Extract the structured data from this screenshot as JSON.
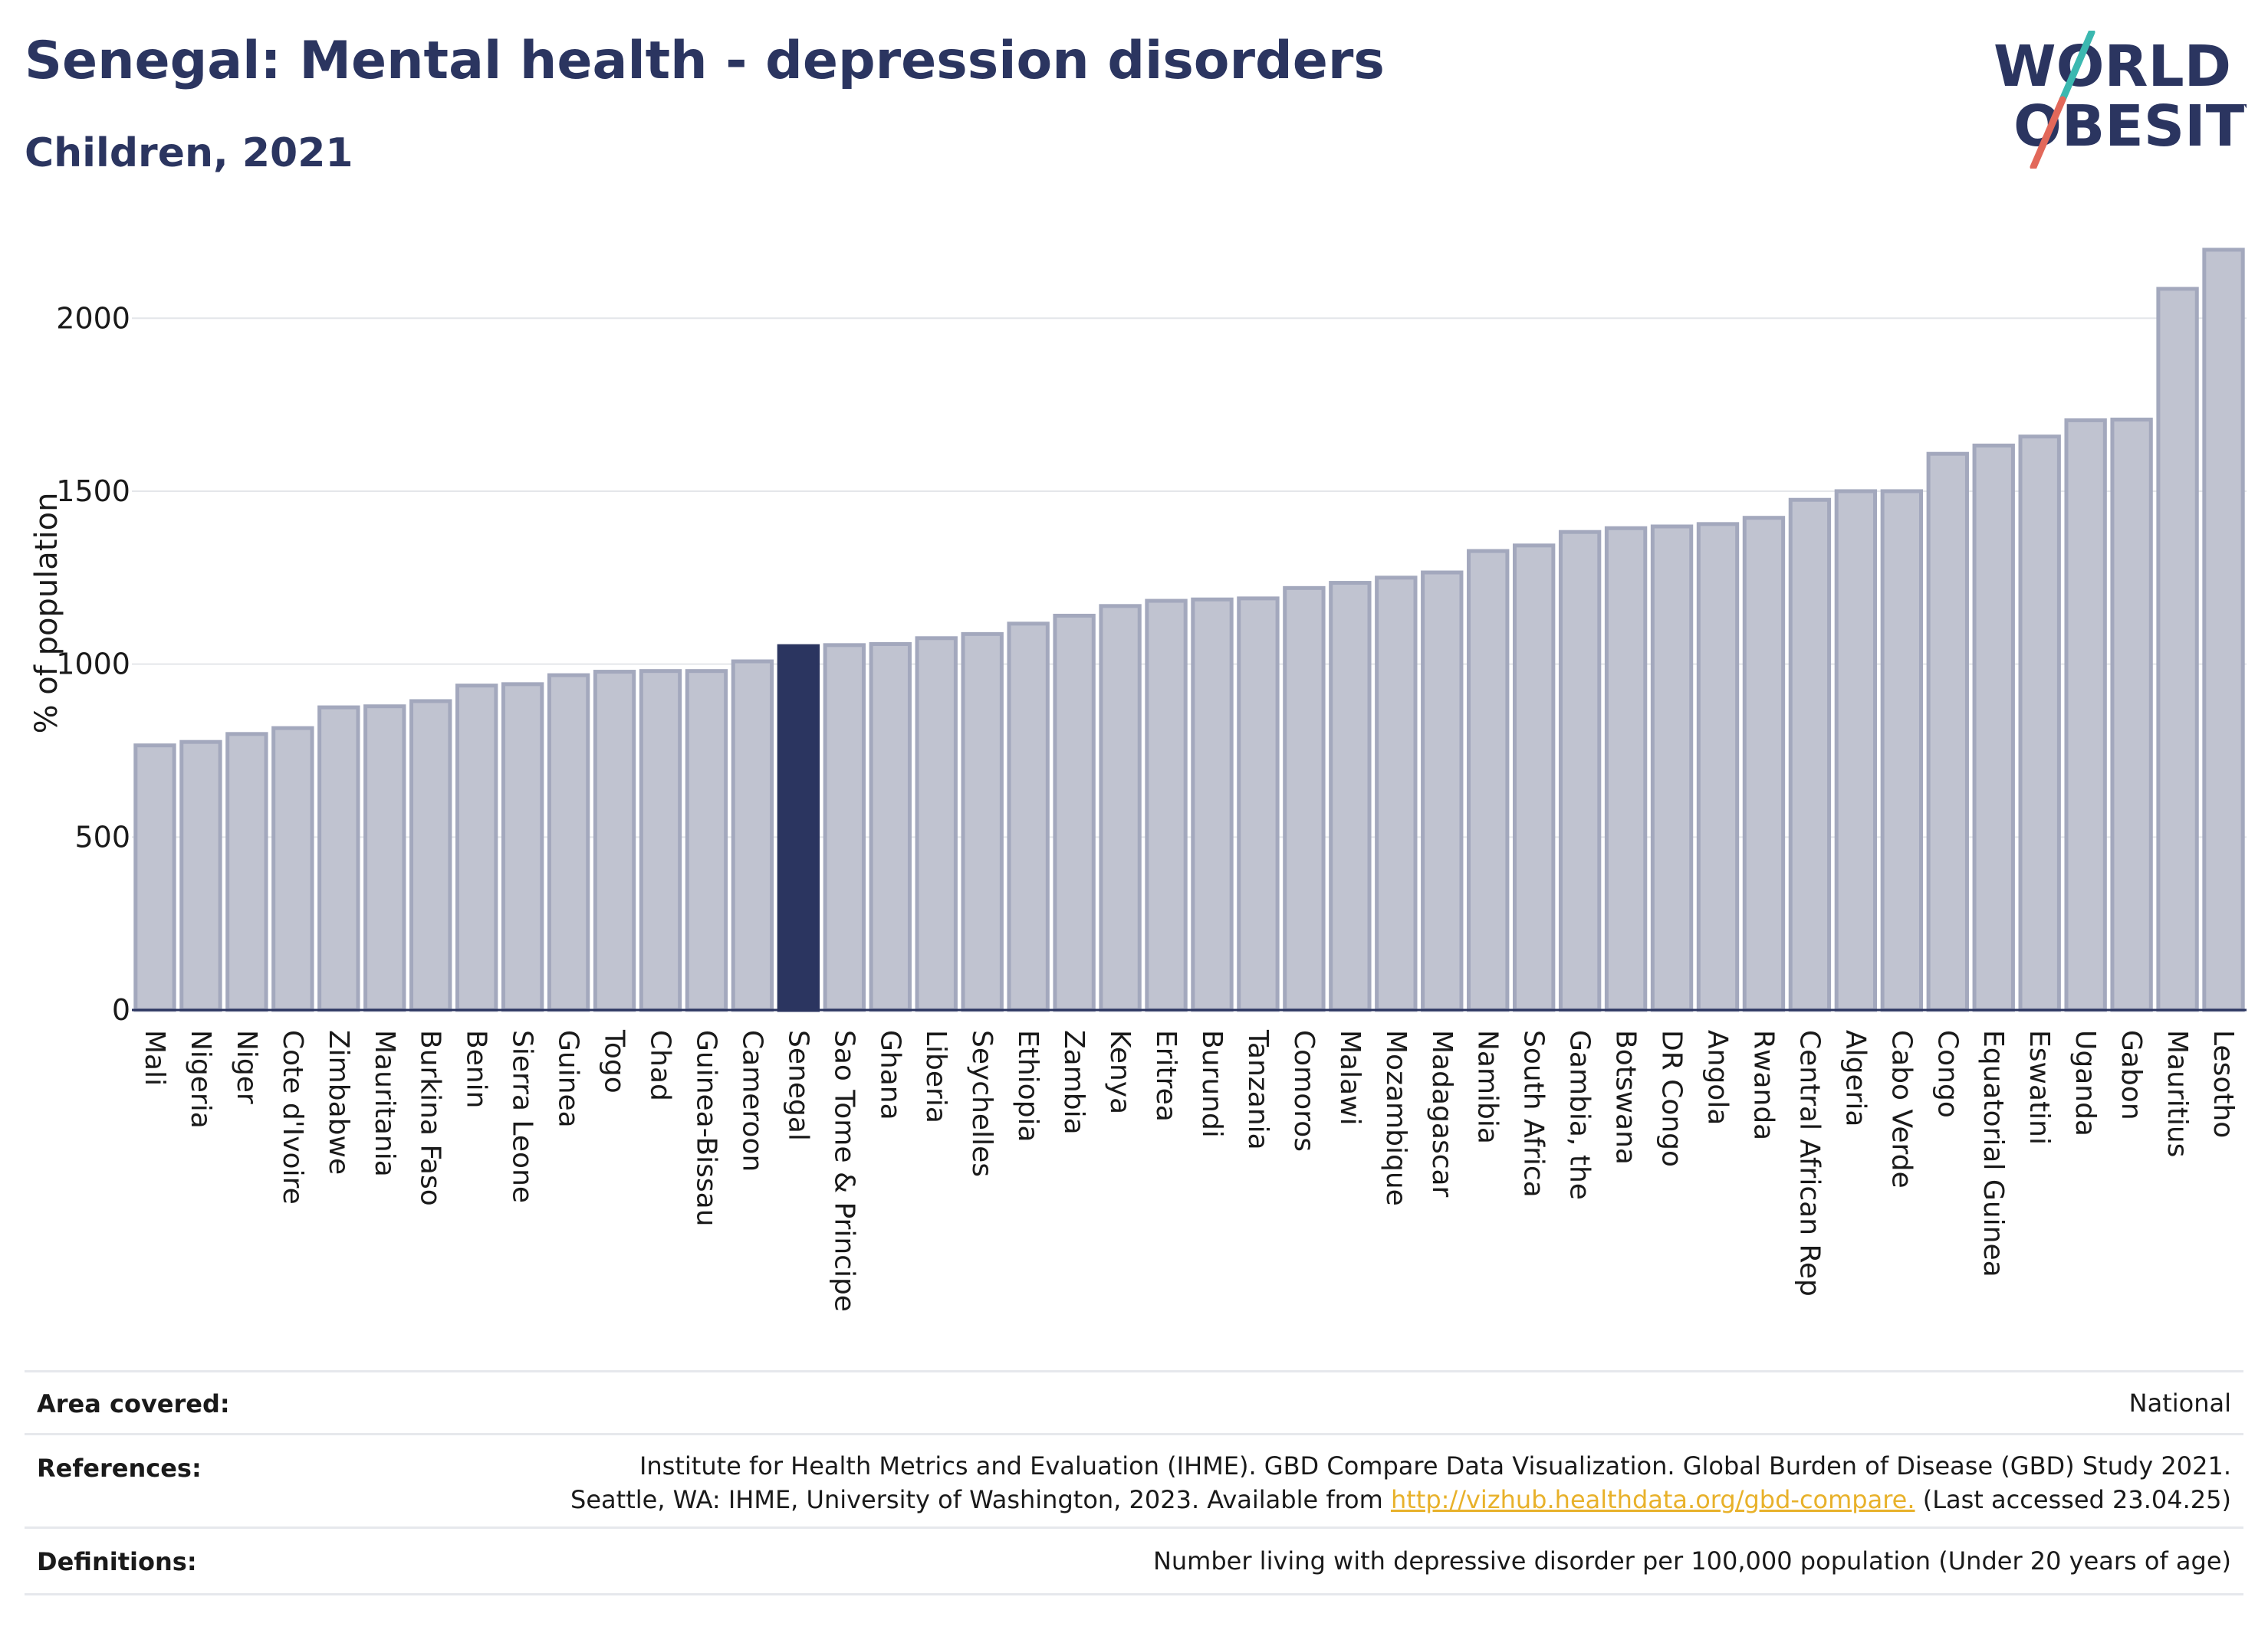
{
  "title": "Senegal: Mental health - depression disorders",
  "subtitle": "Children, 2021",
  "logo": {
    "line1": "WORLD",
    "line2": "OBESITY"
  },
  "colors": {
    "highlight": "#2b3560",
    "bar": "#c0c3d0",
    "bar_stroke": "#a3a8bd",
    "logo_slash_top": "#3bb8b0",
    "logo_slash_bottom": "#e2685a"
  },
  "chart_data": {
    "type": "bar",
    "ylabel": "% of population",
    "ylim": [
      0,
      2200
    ],
    "yticks": [
      0,
      500,
      1000,
      1500,
      2000
    ],
    "grid": true,
    "highlight": "Senegal",
    "categories": [
      "Mali",
      "Nigeria",
      "Niger",
      "Cote d'Ivoire",
      "Zimbabwe",
      "Mauritania",
      "Burkina Faso",
      "Benin",
      "Sierra Leone",
      "Guinea",
      "Togo",
      "Chad",
      "Guinea-Bissau",
      "Cameroon",
      "Senegal",
      "Sao Tome & Principe",
      "Ghana",
      "Liberia",
      "Seychelles",
      "Ethiopia",
      "Zambia",
      "Kenya",
      "Eritrea",
      "Burundi",
      "Tanzania",
      "Comoros",
      "Malawi",
      "Mozambique",
      "Madagascar",
      "Namibia",
      "South Africa",
      "Gambia, the",
      "Botswana",
      "DR Congo",
      "Angola",
      "Rwanda",
      "Central African Rep",
      "Algeria",
      "Cabo Verde",
      "Congo",
      "Equatorial Guinea",
      "Eswatini",
      "Uganda",
      "Gabon",
      "Mauritius",
      "Lesotho"
    ],
    "values": [
      765,
      775,
      798,
      815,
      875,
      878,
      893,
      938,
      942,
      968,
      978,
      980,
      980,
      1008,
      1052,
      1055,
      1058,
      1075,
      1087,
      1117,
      1140,
      1168,
      1183,
      1187,
      1190,
      1220,
      1235,
      1250,
      1265,
      1327,
      1343,
      1382,
      1393,
      1398,
      1405,
      1423,
      1475,
      1500,
      1500,
      1608,
      1632,
      1658,
      1705,
      1707,
      2085,
      2198
    ]
  },
  "footer": {
    "area_label": "Area covered:",
    "area_value": "National",
    "references_label": "References:",
    "references_line1": "Institute for Health Metrics and Evaluation (IHME). GBD Compare Data Visualization. Global Burden of Disease (GBD) Study 2021.",
    "references_line2_pre": "Seattle, WA: IHME, University of Washington, 2023. Available from ",
    "references_link": "http://vizhub.healthdata.org/gbd-compare.",
    "references_line2_post": " (Last accessed 23.04.25)",
    "definitions_label": "Definitions:",
    "definitions_value": "Number living with depressive disorder per 100,000 population (Under 20 years of age)"
  }
}
